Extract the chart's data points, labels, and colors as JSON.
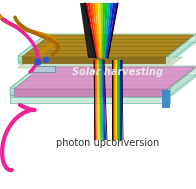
{
  "figsize": [
    1.96,
    1.89
  ],
  "dpi": 100,
  "bg_color": "#ffffff",
  "top_panel": {
    "face_color": "#b08820",
    "edge_color": "#806010",
    "lines_color": "#706010",
    "label": "Solar harvesting",
    "label_color": "#e8e8e8",
    "label_fontsize": 7.0,
    "glass_top_color": "#a8ddc8",
    "glass_alpha": 0.55,
    "glass_edge": "#50b090"
  },
  "bottom_panel": {
    "face_color": "#d898c8",
    "edge_color": "#b070a0",
    "label": "photon upconversion",
    "label_color": "#303030",
    "label_fontsize": 7.0,
    "glass_top_color": "#a8ddc8",
    "glass_alpha": 0.55,
    "glass_edge": "#50b090"
  },
  "spectrum_colors": [
    "#cc0000",
    "#ee2200",
    "#ff5500",
    "#ff8800",
    "#ffbb00",
    "#ddee00",
    "#88dd00",
    "#22cc00",
    "#00bb44",
    "#00aaaa",
    "#0066dd",
    "#0022cc",
    "#4400aa"
  ],
  "wire_gold_color": "#cc8800",
  "wire_gold2_color": "#aa6600",
  "wire_pink_color": "#ee2299",
  "connector_color": "#3355cc",
  "between_color": "#c8ddc0"
}
